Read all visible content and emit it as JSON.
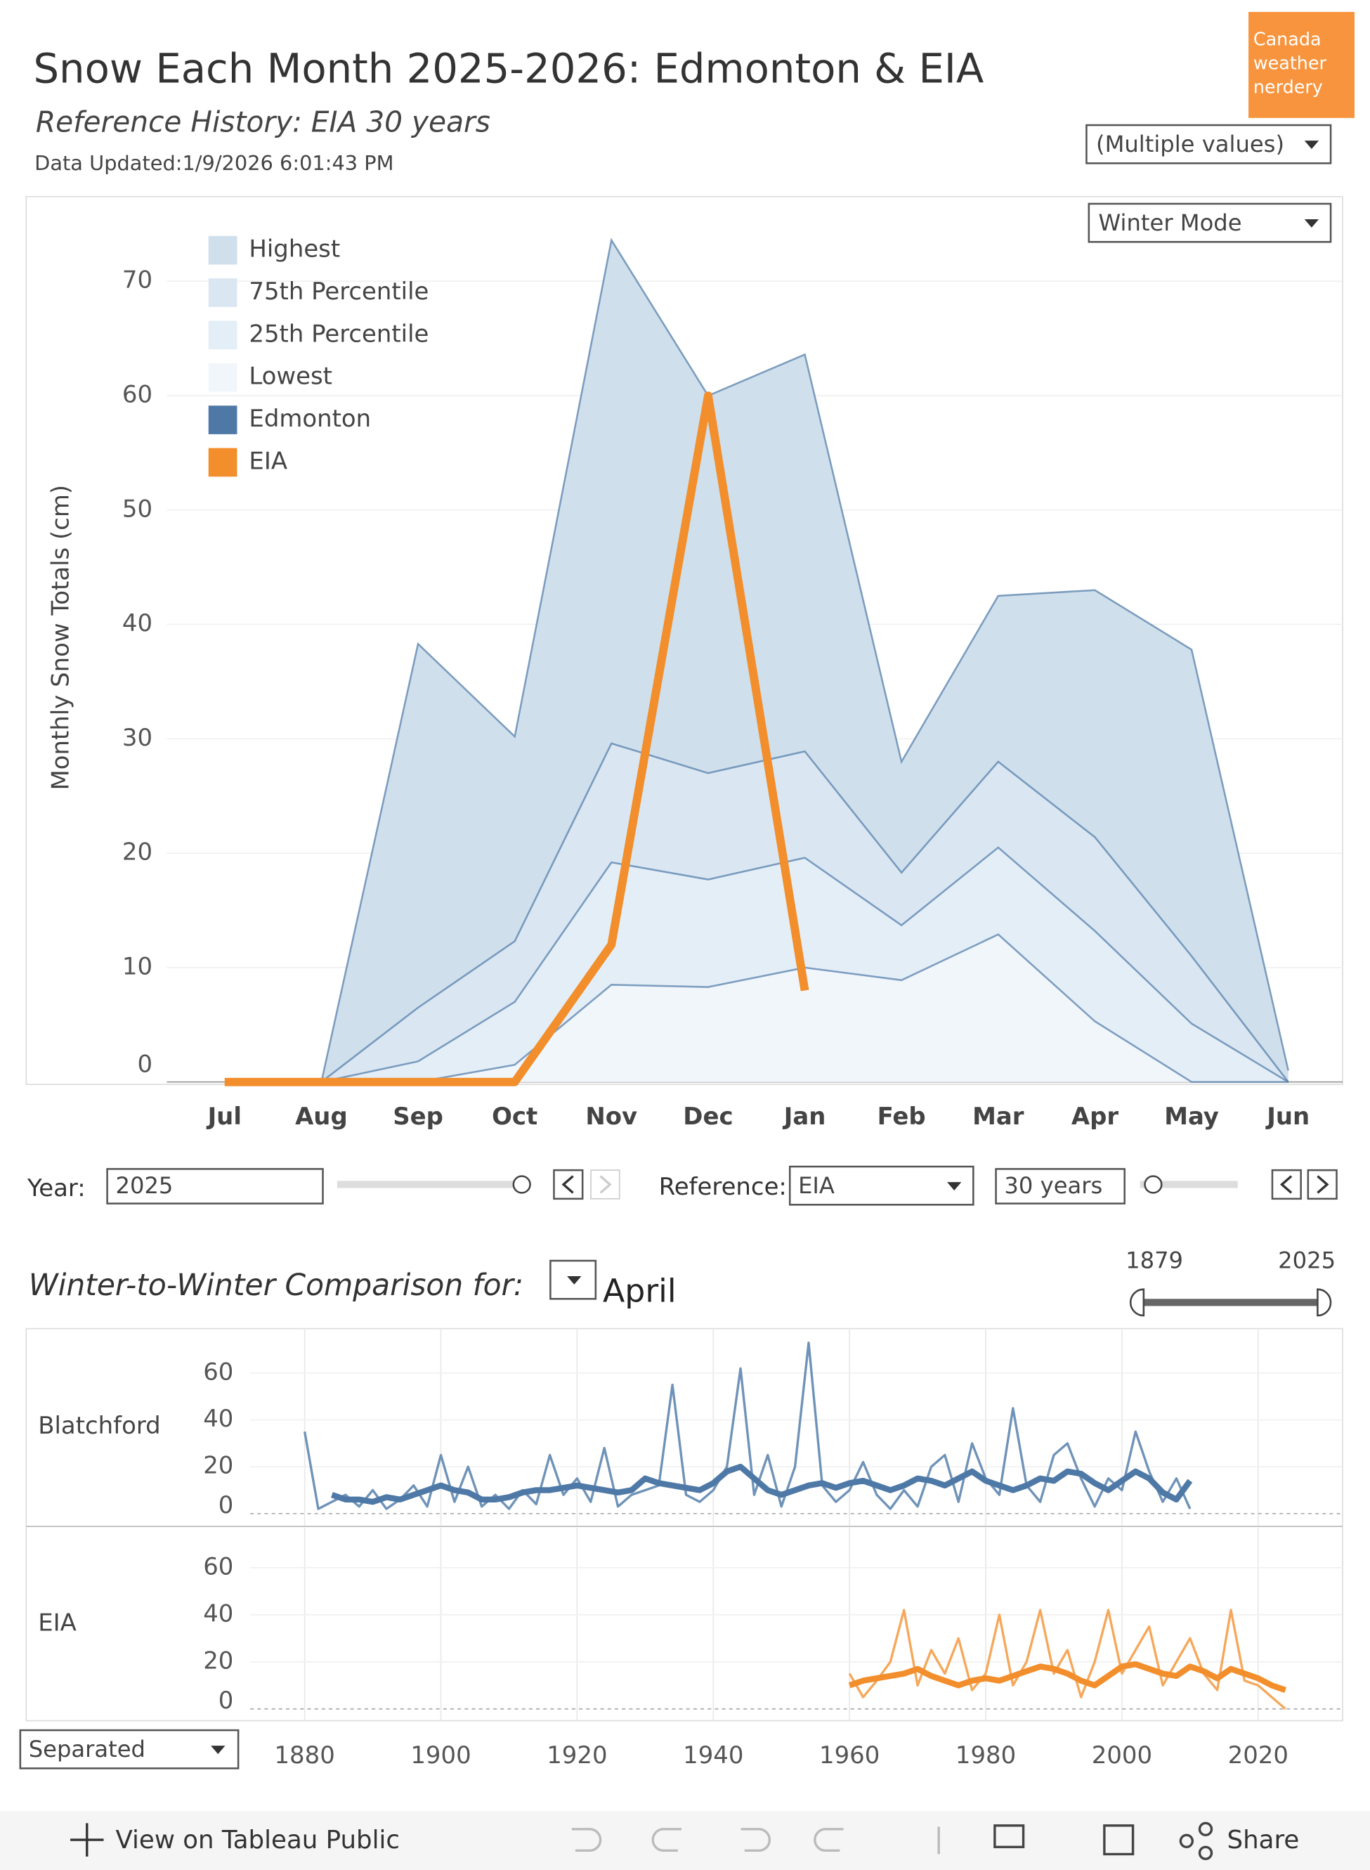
{
  "header": {
    "title": "Snow Each Month 2025-2026: Edmonton & EIA",
    "subtitle": "Reference History: EIA 30 years",
    "updated": "Data Updated:1/9/2026 6:01:43 PM",
    "logo": [
      "Canada",
      "weather",
      "nerdery"
    ],
    "filter": "(Multiple values)",
    "mode": "Winter Mode"
  },
  "controls": {
    "year_label": "Year:",
    "year": "2025",
    "reference_label": "Reference:",
    "reference": "EIA",
    "span": "30 years"
  },
  "comparison": {
    "title": "Winter-to-Winter Comparison for:",
    "month": "April",
    "range": [
      "1879",
      "2025"
    ],
    "layout": "Separated"
  },
  "footer": {
    "view": "View on Tableau Public",
    "share": "Share"
  },
  "chart_data": [
    {
      "type": "area",
      "y_label": "Monthly Snow Totals (cm)",
      "categories": [
        "Jul",
        "Aug",
        "Sep",
        "Oct",
        "Nov",
        "Dec",
        "Jan",
        "Feb",
        "Mar",
        "Apr",
        "May",
        "Jun"
      ],
      "ylim": [
        0,
        77.4
      ],
      "yticks": [
        0,
        10,
        20,
        30,
        40,
        50,
        60,
        70
      ],
      "grid": true,
      "legend": "top-left",
      "series": [
        {
          "name": "Highest",
          "kind": "band",
          "color": "#cfdfec",
          "values": [
            null,
            0,
            38.3,
            30.2,
            73.6,
            60,
            63.6,
            28,
            42.5,
            43,
            37.8,
            1
          ]
        },
        {
          "name": "75th Percentile",
          "kind": "band",
          "color": "#dae7f2",
          "values": [
            null,
            0,
            6.5,
            12.3,
            29.6,
            27,
            28.9,
            18.3,
            28,
            21.4,
            11,
            0
          ]
        },
        {
          "name": "25th Percentile",
          "kind": "band",
          "color": "#e4eef7",
          "values": [
            null,
            0,
            1.8,
            7,
            19.2,
            17.7,
            19.6,
            13.7,
            20.5,
            13.2,
            5.1,
            0
          ]
        },
        {
          "name": "Lowest",
          "kind": "band",
          "color": "#f1f6fb",
          "values": [
            null,
            0,
            0,
            1.5,
            8.5,
            8.3,
            10,
            8.9,
            12.9,
            5.3,
            0,
            0
          ]
        },
        {
          "name": "Edmonton",
          "kind": "outline",
          "color": "#4e79a7"
        },
        {
          "name": "EIA",
          "kind": "line",
          "color": "#f28e2b",
          "values": [
            0,
            0,
            0,
            0,
            12,
            60,
            8,
            null,
            null,
            null,
            null,
            null
          ]
        }
      ]
    },
    {
      "type": "line",
      "panel": "Blatchford",
      "ylim": [
        -5,
        79
      ],
      "yticks": [
        0,
        20,
        40,
        60
      ],
      "x": [
        1880,
        1882,
        1884,
        1886,
        1888,
        1890,
        1892,
        1894,
        1896,
        1898,
        1900,
        1902,
        1904,
        1906,
        1908,
        1910,
        1912,
        1914,
        1916,
        1918,
        1920,
        1922,
        1924,
        1926,
        1928,
        1930,
        1932,
        1934,
        1936,
        1938,
        1940,
        1942,
        1944,
        1946,
        1948,
        1950,
        1952,
        1954,
        1956,
        1958,
        1960,
        1962,
        1964,
        1966,
        1968,
        1970,
        1972,
        1974,
        1976,
        1978,
        1980,
        1982,
        1984,
        1986,
        1988,
        1990,
        1992,
        1994,
        1996,
        1998,
        2000,
        2002,
        2004,
        2006,
        2008,
        2010
      ],
      "series": [
        {
          "color": "#6f93b8",
          "width": 2,
          "values": [
            35,
            2,
            5,
            8,
            3,
            10,
            2,
            6,
            12,
            3,
            25,
            5,
            20,
            3,
            8,
            2,
            10,
            4,
            25,
            8,
            15,
            5,
            28,
            3,
            8,
            10,
            12,
            55,
            8,
            5,
            10,
            20,
            62,
            8,
            25,
            3,
            20,
            73,
            12,
            5,
            10,
            22,
            8,
            2,
            10,
            3,
            20,
            25,
            5,
            30,
            15,
            8,
            45,
            12,
            5,
            25,
            30,
            15,
            3,
            15,
            10,
            35,
            18,
            5,
            15,
            2
          ]
        },
        {
          "color": "#4e79a7",
          "width": 5,
          "values": [
            null,
            null,
            8,
            6,
            6,
            5,
            7,
            6,
            8,
            10,
            12,
            10,
            9,
            6,
            6,
            7,
            9,
            10,
            10,
            11,
            12,
            11,
            10,
            9,
            10,
            15,
            13,
            12,
            11,
            10,
            13,
            18,
            20,
            15,
            10,
            8,
            10,
            12,
            13,
            11,
            13,
            14,
            12,
            10,
            12,
            15,
            14,
            12,
            15,
            18,
            14,
            12,
            10,
            12,
            15,
            14,
            18,
            17,
            13,
            10,
            14,
            18,
            15,
            9,
            6,
            14
          ]
        }
      ]
    },
    {
      "type": "line",
      "panel": "EIA",
      "xlim": [
        1872,
        2032.4
      ],
      "xticks": [
        1880,
        1900,
        1920,
        1940,
        1960,
        1980,
        2000,
        2020
      ],
      "ylim": [
        -5,
        77
      ],
      "yticks": [
        0,
        20,
        40,
        60
      ],
      "x": [
        1960,
        1962,
        1964,
        1966,
        1968,
        1970,
        1972,
        1974,
        1976,
        1978,
        1980,
        1982,
        1984,
        1986,
        1988,
        1990,
        1992,
        1994,
        1996,
        1998,
        2000,
        2002,
        2004,
        2006,
        2008,
        2010,
        2012,
        2014,
        2016,
        2018,
        2020,
        2022,
        2024
      ],
      "series": [
        {
          "color": "#f5a85b",
          "width": 2,
          "values": [
            15,
            5,
            12,
            20,
            42,
            10,
            25,
            15,
            30,
            8,
            15,
            40,
            10,
            20,
            42,
            15,
            25,
            5,
            20,
            42,
            15,
            25,
            35,
            10,
            20,
            30,
            15,
            8,
            42,
            12,
            10,
            5,
            0
          ]
        },
        {
          "color": "#f28e2b",
          "width": 5,
          "values": [
            10,
            12,
            13,
            14,
            15,
            17,
            14,
            12,
            10,
            12,
            13,
            12,
            14,
            16,
            18,
            17,
            15,
            12,
            10,
            14,
            18,
            19,
            17,
            15,
            14,
            18,
            16,
            13,
            17,
            15,
            13,
            10,
            8
          ]
        }
      ]
    }
  ]
}
